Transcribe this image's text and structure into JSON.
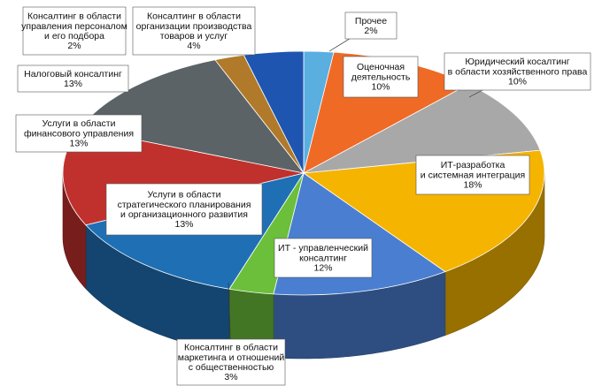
{
  "chart_data": {
    "type": "pie",
    "style": "3d-tilted",
    "title": "",
    "slices": [
      {
        "name": "Прочее",
        "value": 2,
        "label": [
          "Прочее",
          "2%"
        ],
        "color": "#5aaee0"
      },
      {
        "name": "Оценочная деятельность",
        "value": 10,
        "label": [
          "Оценочная",
          "деятельность",
          "10%"
        ],
        "color": "#ef6a24"
      },
      {
        "name": "Юридический косалтинг в области хозяйственного права",
        "value": 10,
        "label": [
          "Юридический косалтинг",
          "в области хозяйственного права",
          "10%"
        ],
        "color": "#a8a8a8"
      },
      {
        "name": "ИТ-разработка и системная интеграция",
        "value": 18,
        "label": [
          "ИТ-разработка",
          "и системная интеграция",
          "18%"
        ],
        "color": "#f5b400"
      },
      {
        "name": "ИТ - управленческий консалтинг",
        "value": 12,
        "label": [
          "ИТ - управленческий",
          "консалтинг",
          "12%"
        ],
        "color": "#4a7ed0"
      },
      {
        "name": "Консалтинг в области маркетинга и отношений с общественностью",
        "value": 3,
        "label": [
          "Консалтинг в области",
          "маркетинга и отношений",
          "с общественностью",
          "3%"
        ],
        "color": "#6cbf3a"
      },
      {
        "name": "Услуги в области стратегического планирования и организационного развития",
        "value": 13,
        "label": [
          "Услуги в области",
          "стратегического планирования",
          "и организационного развития",
          "13%"
        ],
        "color": "#1f6fb5"
      },
      {
        "name": "Услуги в области финансового управления",
        "value": 13,
        "label": [
          "Услуги в области",
          "финансового управления",
          "13%"
        ],
        "color": "#c0312e"
      },
      {
        "name": "Налоговый консалтинг",
        "value": 13,
        "label": [
          "Налоговый консалтинг",
          "13%"
        ],
        "color": "#5c6366"
      },
      {
        "name": "Консалтинг в области управления персоналом и его подбора",
        "value": 2,
        "label": [
          "Консалтинг в области",
          "управления персоналом",
          "и его подбора",
          "2%"
        ],
        "color": "#b07a2a"
      },
      {
        "name": "Консалтинг в области организации производства товаров и услуг",
        "value": 4,
        "label": [
          "Консалтинг в области",
          "организации производства",
          "товаров и услуг",
          "4%"
        ],
        "color": "#1e55b0"
      }
    ]
  }
}
